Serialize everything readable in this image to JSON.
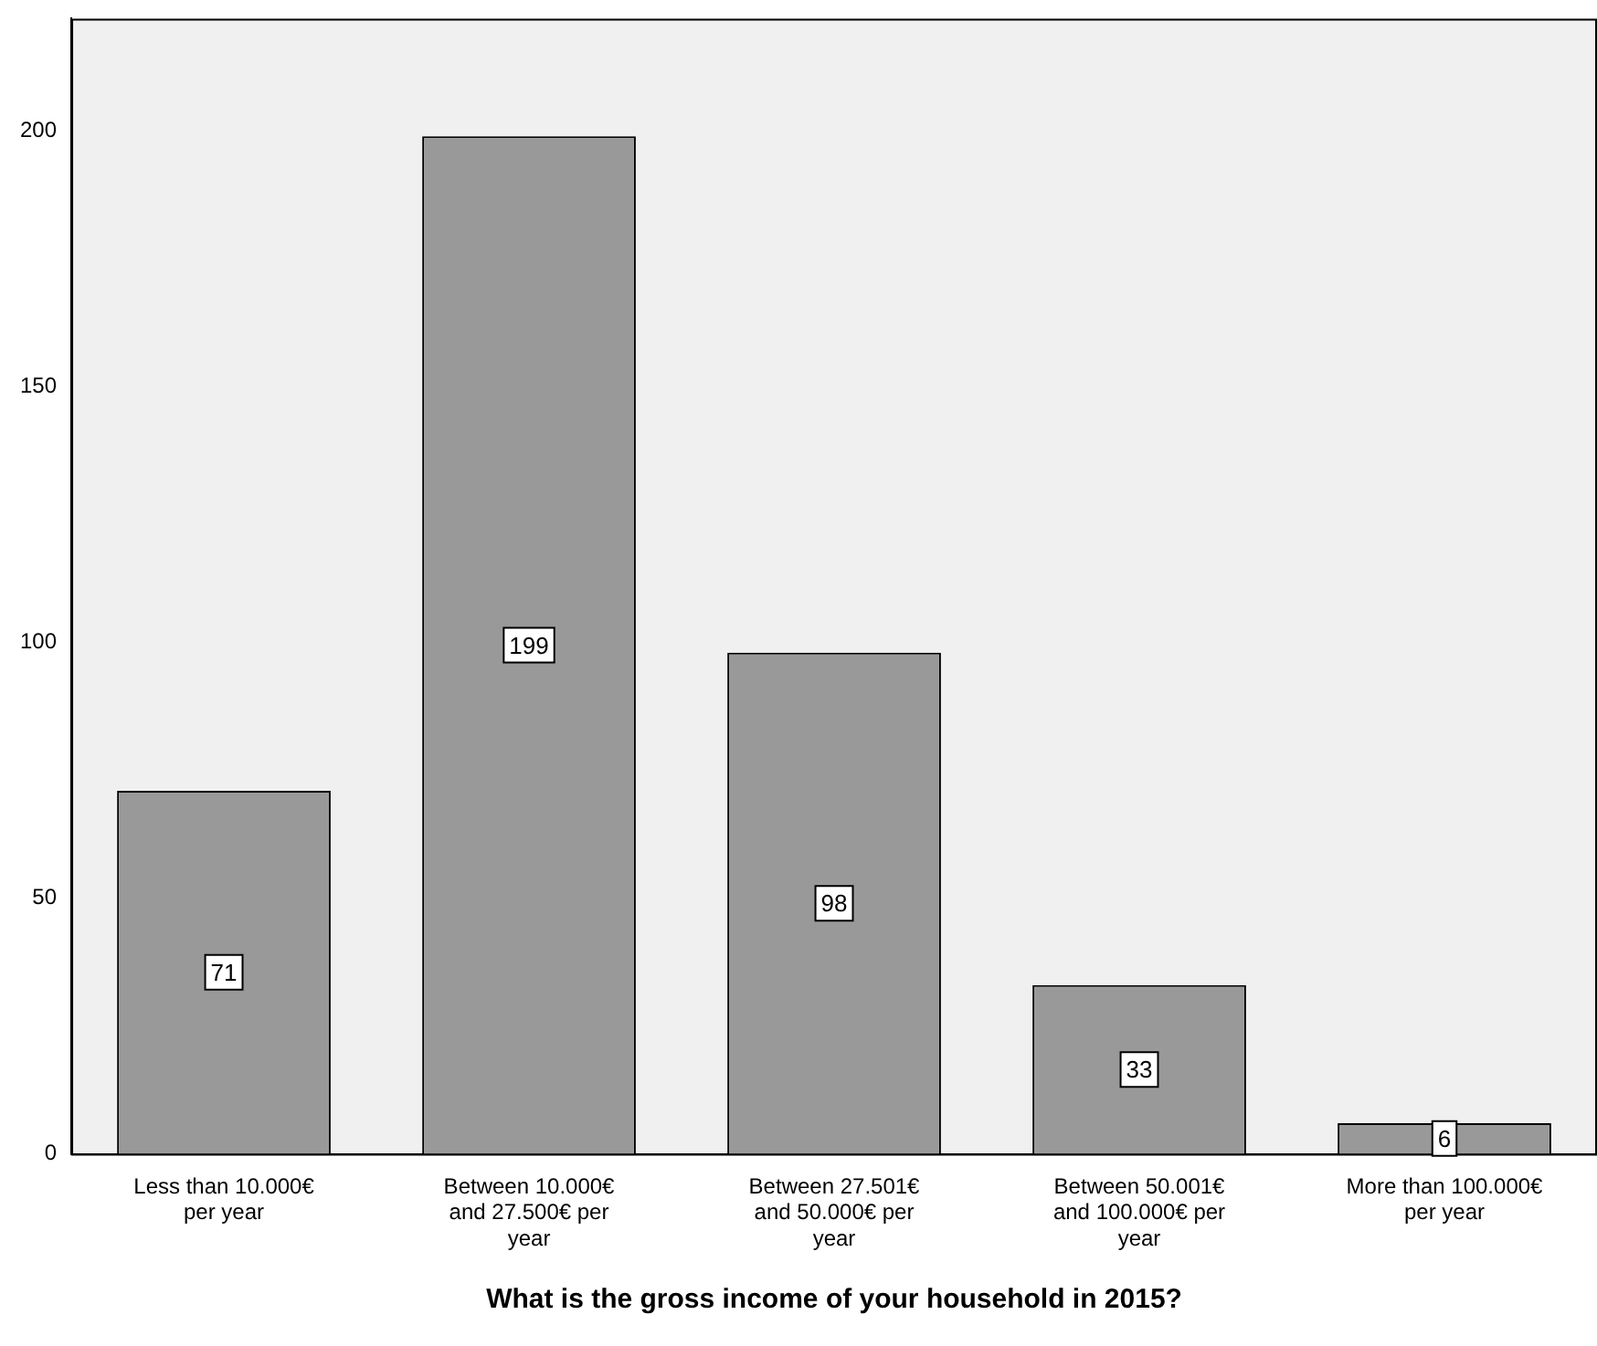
{
  "chart_data": {
    "type": "bar",
    "xlabel": "What is the gross income of your household in 2015?",
    "categories": [
      "Less than 10.000€ per year",
      "Between 10.000€ and 27.500€ per year",
      "Between 27.501€ and 50.000€ per year",
      "Between 50.001€ and 100.000€ per year",
      "More than 100.000€ per year"
    ],
    "values": [
      71,
      199,
      98,
      33,
      6
    ],
    "color": "#999999",
    "ylim": [
      0,
      222
    ],
    "yticks": [
      0,
      50,
      100,
      150,
      200
    ],
    "grid": false,
    "legend": false,
    "data_labels": true
  }
}
